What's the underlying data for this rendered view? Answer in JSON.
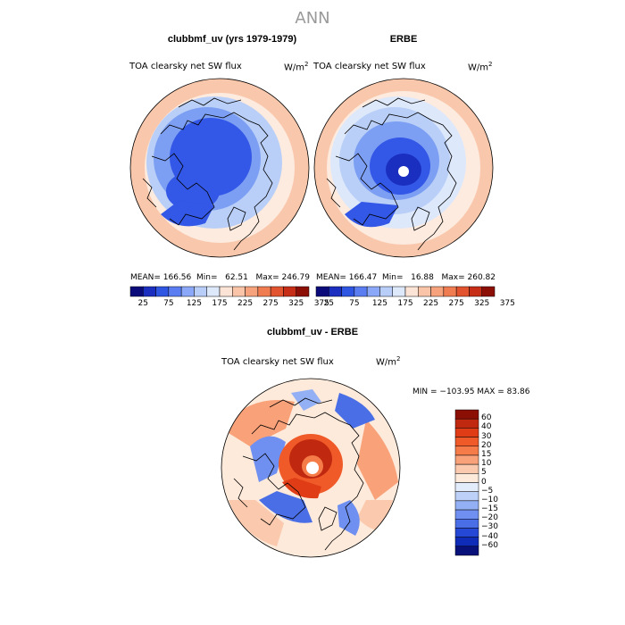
{
  "title": "ANN",
  "panels": [
    {
      "heading": "clubbmf_uv (yrs 1979-1979)",
      "variable": "TOA clearsky net SW flux",
      "units": "W/m",
      "units_exp": "2",
      "stats": {
        "mean_label": "MEAN=",
        "mean": "166.56",
        "min_label": "Min=",
        "min": "62.51",
        "max_label": "Max=",
        "max": "246.79"
      },
      "pole_hole": false
    },
    {
      "heading": "ERBE",
      "variable": "TOA clearsky net SW flux",
      "units": "W/m",
      "units_exp": "2",
      "stats": {
        "mean_label": "MEAN=",
        "mean": "166.47",
        "min_label": "Min=",
        "min": "16.88",
        "max_label": "Max=",
        "max": "260.82"
      },
      "pole_hole": true
    }
  ],
  "colorbar_abs": {
    "labels": [
      "25",
      "75",
      "125",
      "175",
      "225",
      "275",
      "325",
      "375"
    ],
    "colors": [
      "#0a0a7a",
      "#1a2fc0",
      "#2f55e3",
      "#5a7ef2",
      "#8aa8f7",
      "#b8cdf8",
      "#dde8fb",
      "#fbe3d5",
      "#f9c4a8",
      "#f6a27c",
      "#f07c52",
      "#e25430",
      "#c62e18",
      "#8c0f05"
    ]
  },
  "difference": {
    "heading": "clubbmf_uv - ERBE",
    "variable": "TOA clearsky net SW flux",
    "units": "W/m",
    "units_exp": "2",
    "minmax": "MIN = −103.95 MAX =  83.86",
    "colorbar": {
      "labels": [
        "60",
        "40",
        "30",
        "20",
        "15",
        "10",
        "5",
        "0",
        "−5",
        "−10",
        "−15",
        "−20",
        "−30",
        "−40",
        "−60"
      ],
      "colors": [
        "#8c0f05",
        "#c02810",
        "#e03c16",
        "#f05a28",
        "#f57c48",
        "#f9a178",
        "#fbc9ad",
        "#fdeadb",
        "#e3ecfb",
        "#bcd0f8",
        "#93b0f4",
        "#6f90f0",
        "#4a6ee6",
        "#2648d6",
        "#0f2cb8",
        "#08107a"
      ]
    }
  },
  "map_colors": {
    "ocean_warm": "#f9c8ac",
    "ocean_light": "#fdebdf",
    "mid_blue": "#b9cff8",
    "blue": "#7d9ff3",
    "deep_blue": "#3357e6",
    "darkest": "#1a2fc0"
  }
}
